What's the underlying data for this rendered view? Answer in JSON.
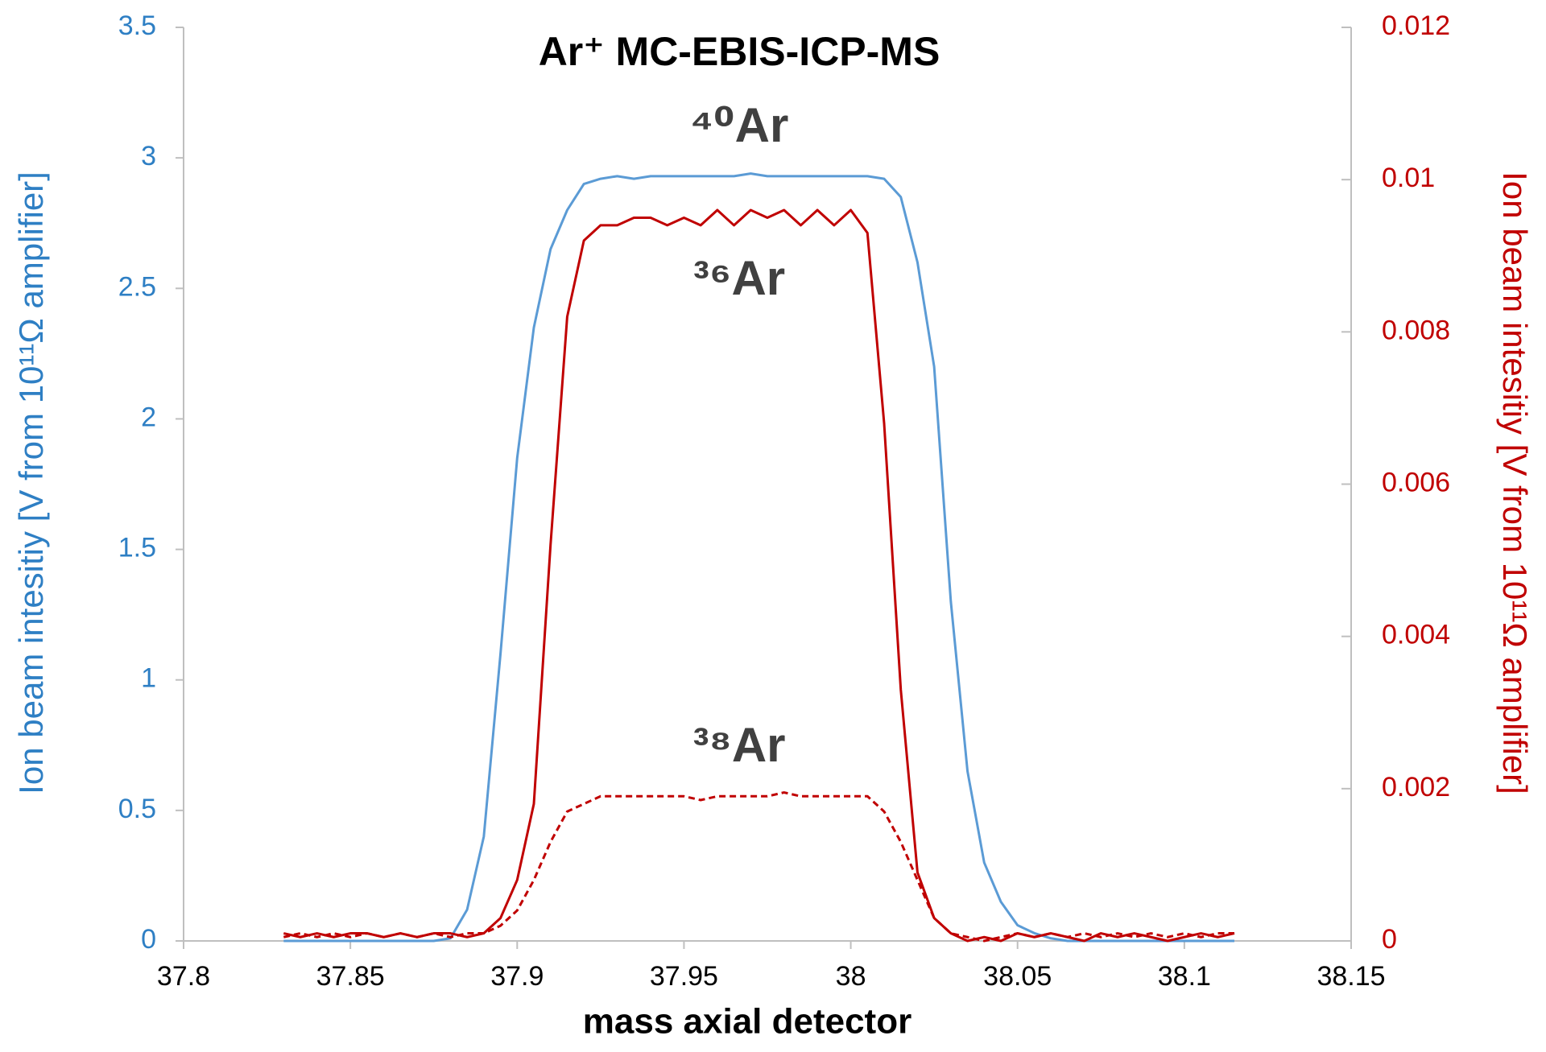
{
  "chart_data": {
    "type": "line",
    "title": "Ar⁺ MC-EBIS-ICP-MS",
    "xlabel": "mass axial detector",
    "ylabel": "Ion beam intesitiy [V from 10¹¹Ω amplifier]",
    "y2label": "Ion beam intesitiy [V from 10¹¹Ω amplifier]",
    "xlim": [
      37.8,
      38.15
    ],
    "xticks": [
      37.8,
      37.85,
      37.9,
      37.95,
      38,
      38.05,
      38.1,
      38.15
    ],
    "ylim": [
      0,
      3.5
    ],
    "yticks": [
      0,
      0.5,
      1,
      1.5,
      2,
      2.5,
      3,
      3.5
    ],
    "y2lim": [
      0,
      0.012
    ],
    "y2ticks": [
      0,
      0.002,
      0.004,
      0.006,
      0.008,
      0.01,
      0.012
    ],
    "ycolor": "#2e7fc4",
    "y2color": "#c00000",
    "x": [
      37.83,
      37.835,
      37.84,
      37.845,
      37.85,
      37.855,
      37.86,
      37.865,
      37.87,
      37.875,
      37.88,
      37.885,
      37.89,
      37.895,
      37.9,
      37.905,
      37.91,
      37.915,
      37.92,
      37.925,
      37.93,
      37.935,
      37.94,
      37.945,
      37.95,
      37.955,
      37.96,
      37.965,
      37.97,
      37.975,
      37.98,
      37.985,
      37.99,
      37.995,
      38,
      38.005,
      38.01,
      38.015,
      38.02,
      38.025,
      38.03,
      38.035,
      38.04,
      38.045,
      38.05,
      38.055,
      38.06,
      38.065,
      38.07,
      38.075,
      38.08,
      38.085,
      38.09,
      38.095,
      38.1,
      38.105,
      38.11,
      38.115
    ],
    "series": [
      {
        "name": "⁴⁰Ar",
        "color": "#5b9bd5",
        "linestyle": "solid",
        "values": [
          0,
          0,
          0,
          0,
          0,
          0,
          0,
          0,
          0,
          0,
          0.01,
          0.12,
          0.4,
          1.1,
          1.85,
          2.35,
          2.65,
          2.8,
          2.9,
          2.92,
          2.93,
          2.92,
          2.93,
          2.93,
          2.93,
          2.93,
          2.93,
          2.93,
          2.94,
          2.93,
          2.93,
          2.93,
          2.93,
          2.93,
          2.93,
          2.93,
          2.92,
          2.85,
          2.6,
          2.2,
          1.3,
          0.65,
          0.3,
          0.15,
          0.06,
          0.03,
          0.01,
          0,
          0,
          0,
          0,
          0,
          0,
          0,
          0,
          0,
          0,
          0
        ]
      },
      {
        "name": "³⁶Ar",
        "color": "#c00000",
        "linestyle": "solid",
        "axis": "y2",
        "values": [
          0.0001,
          5e-05,
          0.0001,
          5e-05,
          0.0001,
          0.0001,
          5e-05,
          0.0001,
          5e-05,
          0.0001,
          0.0001,
          5e-05,
          0.0001,
          0.0003,
          0.0008,
          0.0018,
          0.0052,
          0.0082,
          0.0092,
          0.0094,
          0.0094,
          0.0095,
          0.0095,
          0.0094,
          0.0095,
          0.0094,
          0.0096,
          0.0094,
          0.0096,
          0.0095,
          0.0096,
          0.0094,
          0.0096,
          0.0094,
          0.0096,
          0.0093,
          0.0068,
          0.0033,
          0.0009,
          0.0003,
          0.0001,
          0,
          5e-05,
          0,
          0.0001,
          5e-05,
          0.0001,
          5e-05,
          0,
          0.0001,
          5e-05,
          0.0001,
          5e-05,
          0,
          5e-05,
          0.0001,
          5e-05,
          0.0001
        ]
      },
      {
        "name": "³⁸Ar",
        "color": "#c00000",
        "linestyle": "dashed",
        "axis": "y2",
        "values": [
          5e-05,
          0.0001,
          5e-05,
          0.0001,
          5e-05,
          0.0001,
          5e-05,
          0.0001,
          5e-05,
          0.0001,
          5e-05,
          0.0001,
          0.0001,
          0.0002,
          0.0004,
          0.0008,
          0.0013,
          0.0017,
          0.0018,
          0.0019,
          0.0019,
          0.0019,
          0.0019,
          0.0019,
          0.0019,
          0.00185,
          0.0019,
          0.0019,
          0.0019,
          0.0019,
          0.00195,
          0.0019,
          0.0019,
          0.0019,
          0.0019,
          0.0019,
          0.0017,
          0.0013,
          0.0008,
          0.0003,
          0.0001,
          5e-05,
          0,
          5e-05,
          0.0001,
          5e-05,
          0.0001,
          5e-05,
          0.0001,
          5e-05,
          0.0001,
          5e-05,
          0.0001,
          5e-05,
          0.0001,
          5e-05,
          0.0001,
          0.0001
        ]
      }
    ]
  }
}
